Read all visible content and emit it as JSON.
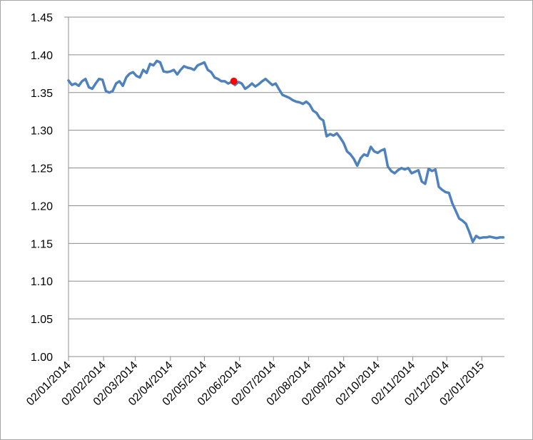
{
  "chart_data": {
    "type": "line",
    "title": "",
    "xlabel": "",
    "ylabel": "",
    "ylim": [
      1.0,
      1.45
    ],
    "yticks": [
      "1.00",
      "1.05",
      "1.10",
      "1.15",
      "1.20",
      "1.25",
      "1.30",
      "1.35",
      "1.40",
      "1.45"
    ],
    "xlim": [
      "2014-01-02",
      "2015-01-22"
    ],
    "xtick_dates": [
      "2014-01-02",
      "2014-02-02",
      "2014-03-02",
      "2014-04-02",
      "2014-05-02",
      "2014-06-02",
      "2014-07-02",
      "2014-08-02",
      "2014-09-02",
      "2014-10-02",
      "2014-11-02",
      "2014-12-02",
      "2015-01-02"
    ],
    "xtick_labels": [
      "02/01/2014",
      "02/02/2014",
      "02/03/2014",
      "02/04/2014",
      "02/05/2014",
      "02/06/2014",
      "02/07/2014",
      "02/08/2014",
      "02/09/2014",
      "02/10/2014",
      "02/11/2014",
      "02/12/2014",
      "02/01/2015"
    ],
    "grid": "horizontal",
    "legend": "none",
    "series": [
      {
        "line_color": "#4f81bd",
        "x": [
          "2014-01-02",
          "2014-01-05",
          "2014-01-08",
          "2014-01-11",
          "2014-01-14",
          "2014-01-17",
          "2014-01-20",
          "2014-01-23",
          "2014-01-26",
          "2014-01-29",
          "2014-02-01",
          "2014-02-04",
          "2014-02-07",
          "2014-02-10",
          "2014-02-13",
          "2014-02-16",
          "2014-02-19",
          "2014-02-22",
          "2014-02-25",
          "2014-02-28",
          "2014-03-03",
          "2014-03-06",
          "2014-03-09",
          "2014-03-12",
          "2014-03-15",
          "2014-03-18",
          "2014-03-21",
          "2014-03-24",
          "2014-03-27",
          "2014-03-30",
          "2014-04-02",
          "2014-04-05",
          "2014-04-08",
          "2014-04-11",
          "2014-04-14",
          "2014-04-17",
          "2014-04-20",
          "2014-04-23",
          "2014-04-26",
          "2014-04-29",
          "2014-05-02",
          "2014-05-05",
          "2014-05-08",
          "2014-05-11",
          "2014-05-14",
          "2014-05-17",
          "2014-05-20",
          "2014-05-23",
          "2014-05-26",
          "2014-05-29",
          "2014-06-01",
          "2014-06-04",
          "2014-06-07",
          "2014-06-10",
          "2014-06-13",
          "2014-06-16",
          "2014-06-19",
          "2014-06-22",
          "2014-06-25",
          "2014-06-28",
          "2014-07-01",
          "2014-07-04",
          "2014-07-07",
          "2014-07-10",
          "2014-07-13",
          "2014-07-16",
          "2014-07-19",
          "2014-07-22",
          "2014-07-25",
          "2014-07-28",
          "2014-07-31",
          "2014-08-03",
          "2014-08-06",
          "2014-08-09",
          "2014-08-12",
          "2014-08-15",
          "2014-08-18",
          "2014-08-21",
          "2014-08-24",
          "2014-08-27",
          "2014-08-30",
          "2014-09-02",
          "2014-09-05",
          "2014-09-08",
          "2014-09-11",
          "2014-09-14",
          "2014-09-17",
          "2014-09-20",
          "2014-09-23",
          "2014-09-26",
          "2014-09-29",
          "2014-10-02",
          "2014-10-05",
          "2014-10-08",
          "2014-10-11",
          "2014-10-14",
          "2014-10-17",
          "2014-10-20",
          "2014-10-23",
          "2014-10-26",
          "2014-10-29",
          "2014-11-01",
          "2014-11-04",
          "2014-11-07",
          "2014-11-10",
          "2014-11-13",
          "2014-11-16",
          "2014-11-19",
          "2014-11-22",
          "2014-11-25",
          "2014-11-28",
          "2014-12-01",
          "2014-12-04",
          "2014-12-07",
          "2014-12-10",
          "2014-12-13",
          "2014-12-16",
          "2014-12-19",
          "2014-12-22",
          "2014-12-25",
          "2014-12-28",
          "2014-12-31",
          "2015-01-03",
          "2015-01-06",
          "2015-01-09",
          "2015-01-12",
          "2015-01-15",
          "2015-01-18",
          "2015-01-21"
        ],
        "y": [
          1.366,
          1.36,
          1.362,
          1.359,
          1.365,
          1.368,
          1.357,
          1.355,
          1.362,
          1.368,
          1.367,
          1.352,
          1.35,
          1.352,
          1.362,
          1.365,
          1.359,
          1.37,
          1.375,
          1.377,
          1.372,
          1.37,
          1.38,
          1.376,
          1.388,
          1.386,
          1.392,
          1.39,
          1.378,
          1.377,
          1.378,
          1.38,
          1.374,
          1.38,
          1.385,
          1.383,
          1.382,
          1.38,
          1.386,
          1.388,
          1.39,
          1.38,
          1.377,
          1.37,
          1.368,
          1.365,
          1.365,
          1.362,
          1.364,
          1.36,
          1.364,
          1.362,
          1.355,
          1.358,
          1.362,
          1.358,
          1.361,
          1.365,
          1.368,
          1.364,
          1.36,
          1.362,
          1.354,
          1.347,
          1.345,
          1.343,
          1.34,
          1.338,
          1.337,
          1.335,
          1.338,
          1.334,
          1.326,
          1.323,
          1.316,
          1.313,
          1.292,
          1.295,
          1.293,
          1.296,
          1.29,
          1.283,
          1.272,
          1.268,
          1.262,
          1.253,
          1.263,
          1.268,
          1.266,
          1.278,
          1.272,
          1.27,
          1.273,
          1.275,
          1.252,
          1.246,
          1.243,
          1.247,
          1.25,
          1.248,
          1.25,
          1.243,
          1.245,
          1.247,
          1.232,
          1.229,
          1.249,
          1.246,
          1.248,
          1.225,
          1.221,
          1.218,
          1.217,
          1.203,
          1.193,
          1.183,
          1.18,
          1.176,
          1.165,
          1.152,
          1.16,
          1.157,
          1.158,
          1.158,
          1.159,
          1.158,
          1.157,
          1.158,
          1.158
        ],
        "marker": {
          "x": "2014-05-28",
          "y": 1.365,
          "color": "#ff0000"
        }
      }
    ]
  }
}
